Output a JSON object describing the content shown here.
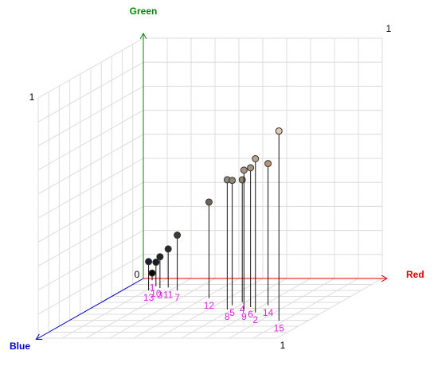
{
  "chart_data": {
    "type": "scatter3d",
    "xlabel": "Red",
    "ylabel": "Green",
    "zlabel": "Blue",
    "xlim": [
      0,
      1
    ],
    "ylim": [
      0,
      1
    ],
    "zlim": [
      0,
      1
    ],
    "xticks": [
      0,
      1
    ],
    "yticks": [
      1
    ],
    "zticks": [
      1
    ],
    "grid": true,
    "labels": [
      "1",
      "13",
      "10",
      "3",
      "11",
      "7",
      "12",
      "8",
      "5",
      "4",
      "9",
      "6",
      "2",
      "14",
      "15"
    ],
    "x": [
      0.05,
      0.11,
      0.11,
      0.14,
      0.17,
      0.23,
      0.42,
      0.58,
      0.57,
      0.59,
      0.65,
      0.66,
      0.72,
      0.72,
      0.88
    ],
    "y": [
      0.03,
      0.12,
      0.1,
      0.13,
      0.16,
      0.23,
      0.4,
      0.54,
      0.52,
      0.51,
      0.58,
      0.58,
      0.64,
      0.59,
      0.79
    ],
    "z": [
      0.03,
      0.2,
      0.13,
      0.16,
      0.15,
      0.2,
      0.33,
      0.52,
      0.45,
      0.4,
      0.52,
      0.48,
      0.57,
      0.45,
      0.71
    ]
  }
}
